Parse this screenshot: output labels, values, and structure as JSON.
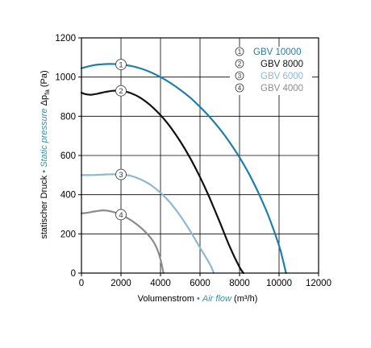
{
  "chart_data": {
    "type": "line",
    "xlabel_de": "Volumenstrom",
    "xlabel_sep": " • ",
    "xlabel_en": "Air flow",
    "xlabel_unit": " (m³/h)",
    "ylabel_de": "statischer Druck",
    "ylabel_sep": " • ",
    "ylabel_en": "Static pressure",
    "ylabel_sym": " Δp",
    "ylabel_sub": "fa",
    "ylabel_unit": " (Pa)",
    "xlim": [
      0,
      12000
    ],
    "ylim": [
      0,
      1200
    ],
    "xticks": [
      "0",
      "2000",
      "4000",
      "6000",
      "8000",
      "10000",
      "12000"
    ],
    "yticks": [
      "0",
      "200",
      "400",
      "600",
      "800",
      "1000",
      "1200"
    ],
    "grid": true,
    "legend_position": "top-right",
    "colors": {
      "axis": "#000000",
      "grid": "#000000",
      "english_label": "#3a8ea8"
    },
    "series": [
      {
        "marker": "1",
        "name": "GBV 10000",
        "color": "#1f7fa6",
        "points": [
          [
            0,
            1045
          ],
          [
            500,
            1058
          ],
          [
            1000,
            1065
          ],
          [
            1500,
            1067
          ],
          [
            2000,
            1064
          ],
          [
            2500,
            1057
          ],
          [
            3000,
            1044
          ],
          [
            3500,
            1025
          ],
          [
            4000,
            1000
          ],
          [
            4500,
            970
          ],
          [
            5000,
            935
          ],
          [
            5500,
            895
          ],
          [
            6000,
            848
          ],
          [
            6500,
            795
          ],
          [
            7000,
            735
          ],
          [
            7500,
            667
          ],
          [
            8000,
            590
          ],
          [
            8500,
            502
          ],
          [
            9000,
            400
          ],
          [
            9500,
            282
          ],
          [
            10000,
            140
          ],
          [
            10200,
            65
          ],
          [
            10350,
            0
          ]
        ]
      },
      {
        "marker": "2",
        "name": "GBV 8000",
        "color": "#111111",
        "points": [
          [
            0,
            920
          ],
          [
            250,
            912
          ],
          [
            500,
            910
          ],
          [
            800,
            915
          ],
          [
            1200,
            924
          ],
          [
            1600,
            930
          ],
          [
            2000,
            930
          ],
          [
            2500,
            918
          ],
          [
            3000,
            893
          ],
          [
            3500,
            855
          ],
          [
            4000,
            806
          ],
          [
            4500,
            745
          ],
          [
            5000,
            672
          ],
          [
            5500,
            587
          ],
          [
            6000,
            490
          ],
          [
            6500,
            380
          ],
          [
            7000,
            260
          ],
          [
            7500,
            135
          ],
          [
            8000,
            30
          ],
          [
            8200,
            0
          ]
        ]
      },
      {
        "marker": "3",
        "name": "GBV 6000",
        "color": "#8cb8d4",
        "points": [
          [
            0,
            500
          ],
          [
            500,
            500
          ],
          [
            1000,
            502
          ],
          [
            1500,
            504
          ],
          [
            2000,
            503
          ],
          [
            2500,
            496
          ],
          [
            3000,
            478
          ],
          [
            3500,
            450
          ],
          [
            4000,
            410
          ],
          [
            4500,
            358
          ],
          [
            5000,
            292
          ],
          [
            5500,
            215
          ],
          [
            6000,
            130
          ],
          [
            6500,
            45
          ],
          [
            6700,
            0
          ]
        ]
      },
      {
        "marker": "4",
        "name": "GBV 4000",
        "color": "#8c8c8c",
        "points": [
          [
            0,
            305
          ],
          [
            300,
            308
          ],
          [
            700,
            315
          ],
          [
            1100,
            320
          ],
          [
            1500,
            315
          ],
          [
            2000,
            298
          ],
          [
            2500,
            270
          ],
          [
            3000,
            232
          ],
          [
            3500,
            180
          ],
          [
            3800,
            130
          ],
          [
            4000,
            70
          ],
          [
            4150,
            0
          ]
        ]
      }
    ],
    "markers_at_x": 2000
  },
  "legend_markers": [
    "1",
    "2",
    "3",
    "4"
  ]
}
